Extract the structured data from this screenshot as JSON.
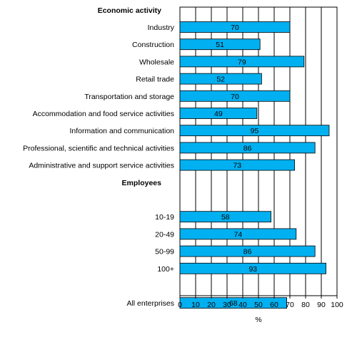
{
  "chart_data": {
    "type": "bar",
    "orientation": "horizontal",
    "xlabel": "%",
    "xlim": [
      0,
      100
    ],
    "xticks": [
      0,
      10,
      20,
      30,
      40,
      50,
      60,
      70,
      80,
      90,
      100
    ],
    "grid": "vertical",
    "bar_color": "#00B0F0",
    "groups": [
      {
        "heading": "Economic activity",
        "categories": [
          "Industry",
          "Construction",
          "Wholesale",
          "Retail trade",
          "Transportation and storage",
          "Accommodation and food service activities",
          "Information and communication",
          "Professional, scientific and technical activities",
          "Administrative and support service activities"
        ],
        "values": [
          70,
          51,
          79,
          52,
          70,
          49,
          95,
          86,
          73
        ]
      },
      {
        "heading": "Employees",
        "categories": [
          "10-19",
          "20-49",
          "50-99",
          "100+"
        ],
        "values": [
          58,
          74,
          86,
          93
        ]
      },
      {
        "heading": "",
        "categories": [
          "All enterprises"
        ],
        "values": [
          68
        ]
      }
    ]
  }
}
